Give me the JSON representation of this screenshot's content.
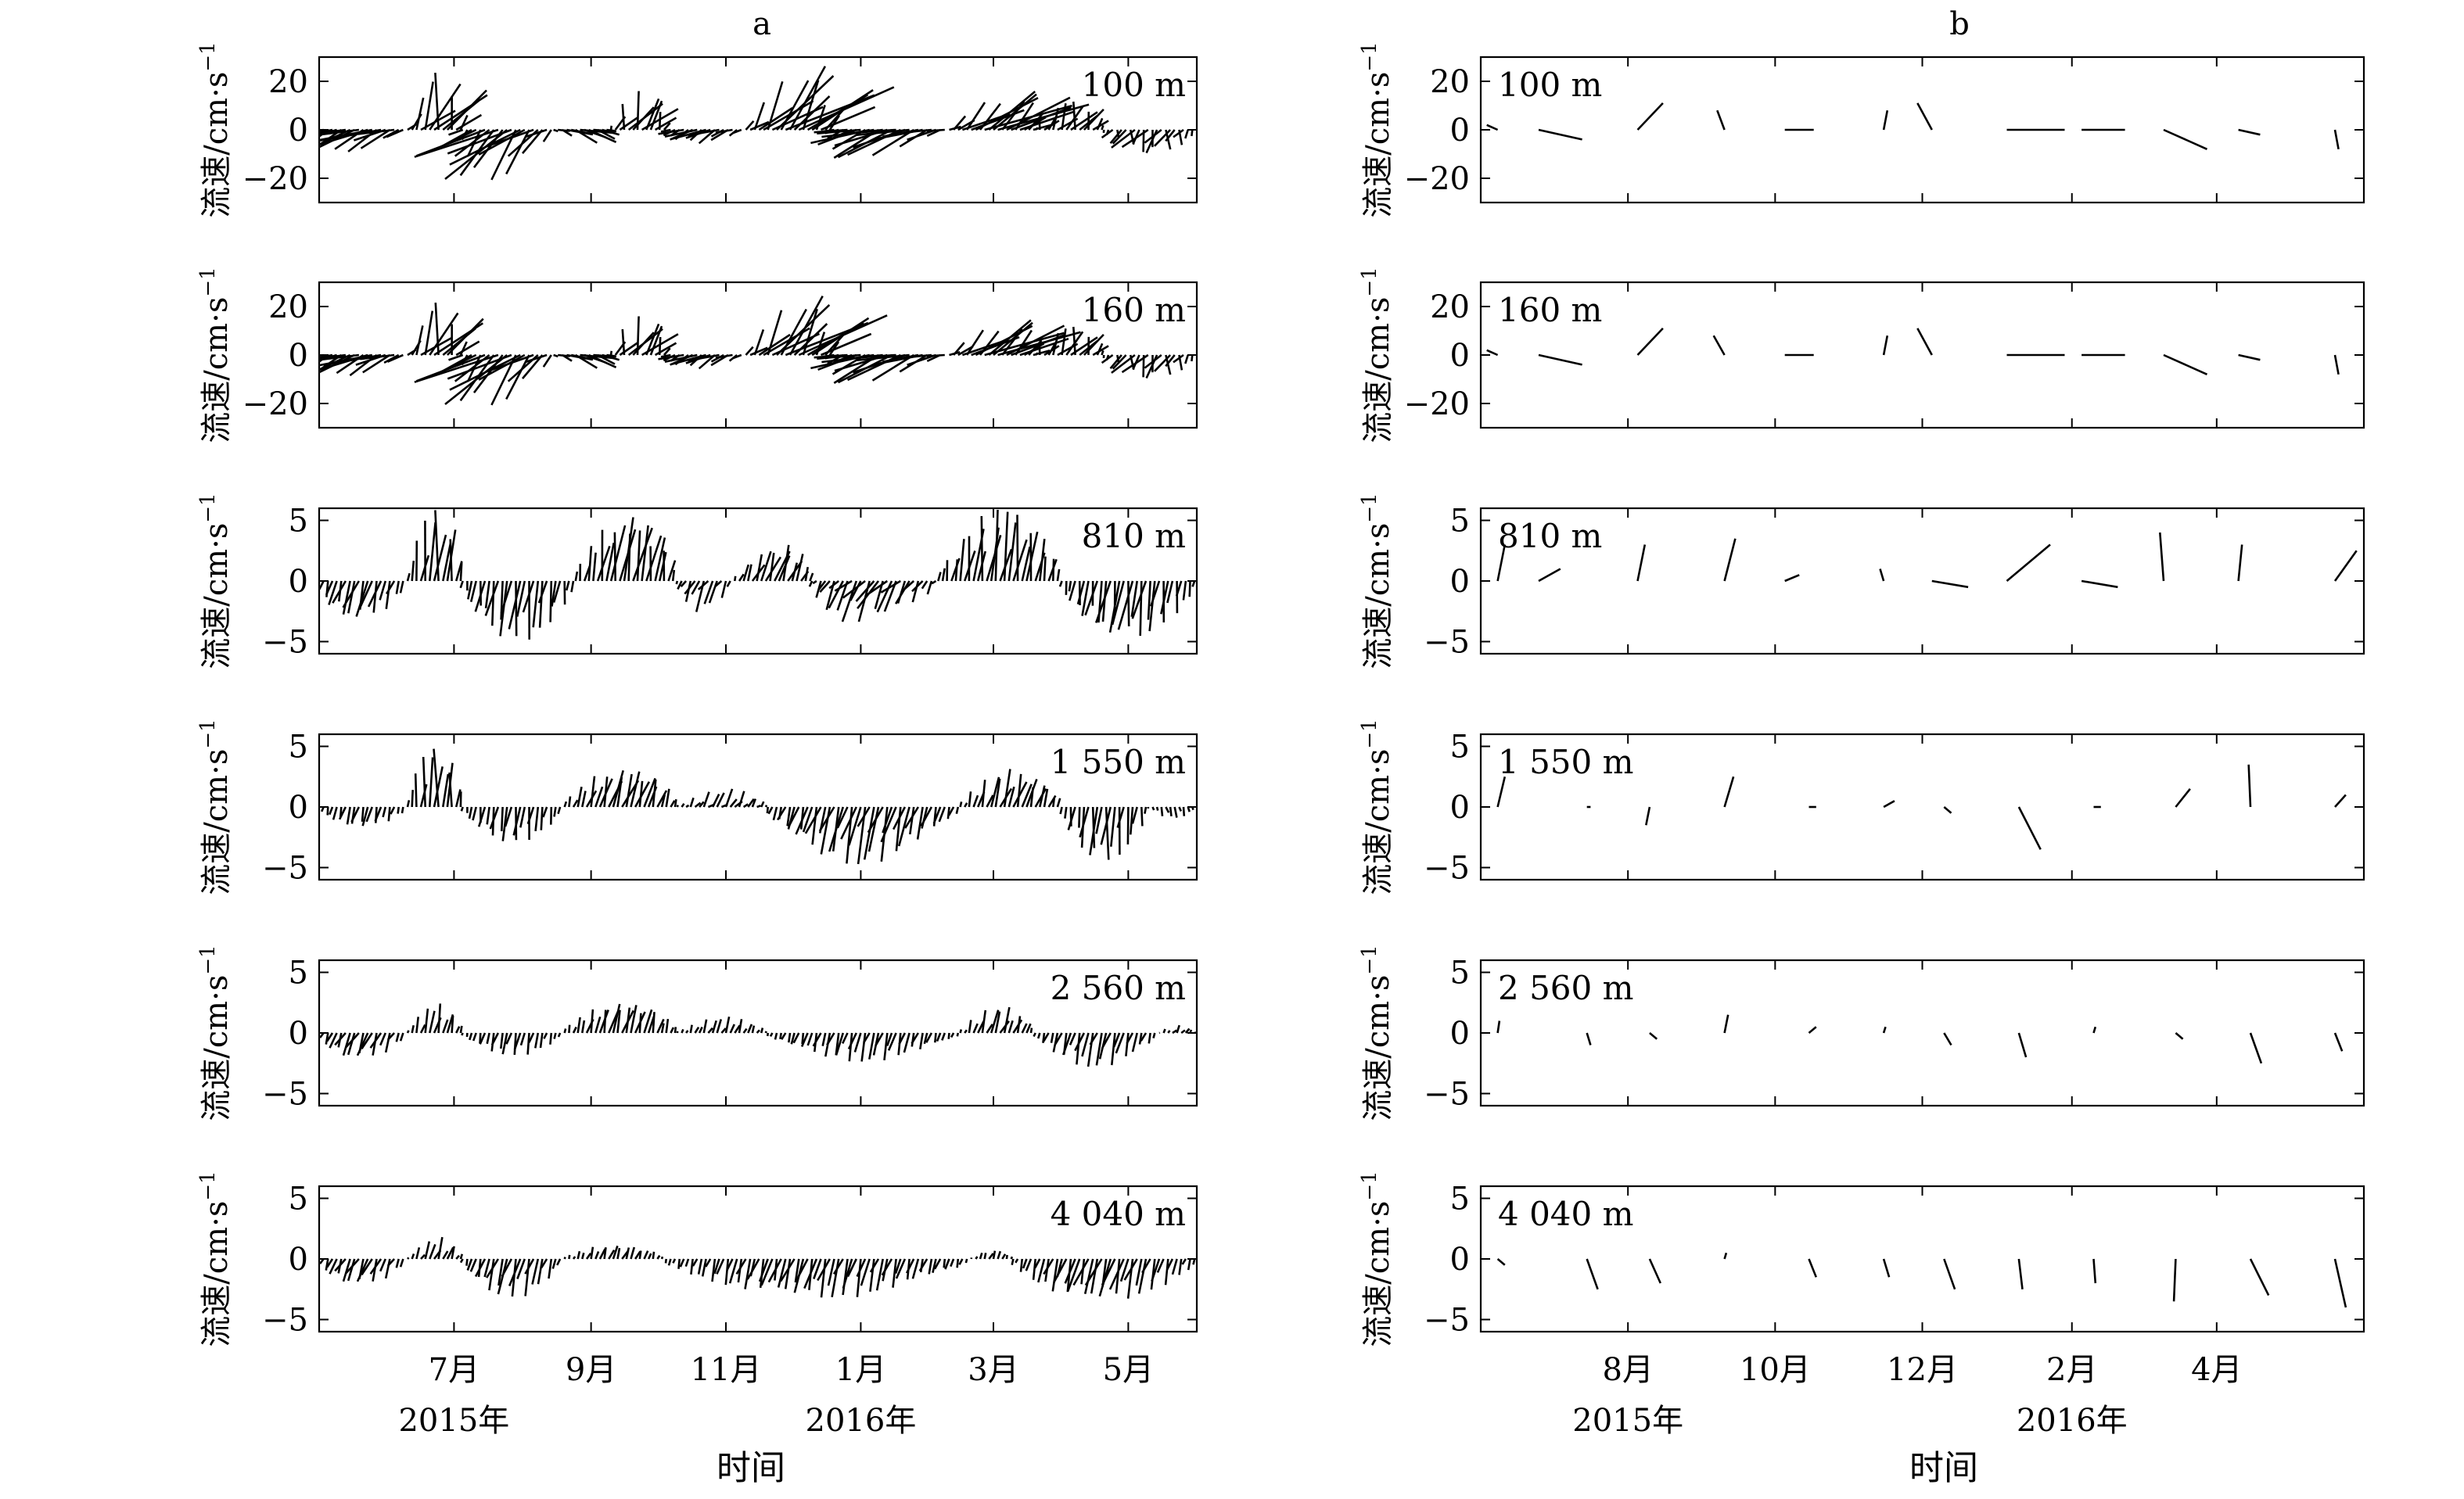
{
  "figure": {
    "panel_letters": [
      "a",
      "b"
    ],
    "xlabel": "时间",
    "ylabel": "流速/cm·s",
    "ylabel_sup": "−1",
    "line_color": "#000000",
    "background": "#ffffff"
  },
  "chart_data": [
    {
      "type": "stick",
      "panel": "a",
      "time_range": [
        "2015-05-01",
        "2016-06-01"
      ],
      "sample_interval_days": 2,
      "xtick_labels": [
        "7月",
        "9月",
        "11月",
        "1月",
        "3月",
        "5月"
      ],
      "xtick_dates": [
        "2015-07-01",
        "2015-09-01",
        "2015-11-01",
        "2016-01-01",
        "2016-03-01",
        "2016-05-01"
      ],
      "year_labels": [
        "2015年",
        "2016年"
      ],
      "year_label_dates": [
        "2015-07-01",
        "2016-01-01"
      ],
      "subplots": [
        {
          "depth_label": "100 m",
          "ylim": [
            -30,
            30
          ],
          "yticks": [
            -20,
            0,
            20
          ],
          "segments": [
            {
              "start": "2015-05-01",
              "end": "2015-06-10",
              "dir": 235,
              "amp": 16
            },
            {
              "start": "2015-06-10",
              "end": "2015-07-05",
              "dir": 20,
              "amp": 24
            },
            {
              "start": "2015-07-05",
              "end": "2015-08-15",
              "dir": 215,
              "amp": 24
            },
            {
              "start": "2015-08-15",
              "end": "2015-09-10",
              "dir": 120,
              "amp": 8
            },
            {
              "start": "2015-09-10",
              "end": "2015-10-05",
              "dir": 20,
              "amp": 16
            },
            {
              "start": "2015-10-05",
              "end": "2015-11-10",
              "dir": 230,
              "amp": 8
            },
            {
              "start": "2015-11-10",
              "end": "2015-12-20",
              "dir": 30,
              "amp": 28
            },
            {
              "start": "2015-12-20",
              "end": "2016-02-10",
              "dir": 240,
              "amp": 16
            },
            {
              "start": "2016-02-10",
              "end": "2016-03-20",
              "dir": 40,
              "amp": 22
            },
            {
              "start": "2016-03-20",
              "end": "2016-04-20",
              "dir": 20,
              "amp": 12
            },
            {
              "start": "2016-04-20",
              "end": "2016-06-01",
              "dir": 195,
              "amp": 10
            }
          ]
        },
        {
          "depth_label": "160 m",
          "ylim": [
            -30,
            30
          ],
          "yticks": [
            -20,
            0,
            20
          ],
          "segments": [
            {
              "start": "2015-05-01",
              "end": "2015-06-10",
              "dir": 235,
              "amp": 15
            },
            {
              "start": "2015-06-10",
              "end": "2015-07-05",
              "dir": 20,
              "amp": 22
            },
            {
              "start": "2015-07-05",
              "end": "2015-08-15",
              "dir": 215,
              "amp": 24
            },
            {
              "start": "2015-08-15",
              "end": "2015-09-10",
              "dir": 120,
              "amp": 8
            },
            {
              "start": "2015-09-10",
              "end": "2015-10-05",
              "dir": 20,
              "amp": 16
            },
            {
              "start": "2015-10-05",
              "end": "2015-11-10",
              "dir": 230,
              "amp": 8
            },
            {
              "start": "2015-11-10",
              "end": "2015-12-20",
              "dir": 30,
              "amp": 26
            },
            {
              "start": "2015-12-20",
              "end": "2016-02-10",
              "dir": 240,
              "amp": 16
            },
            {
              "start": "2016-02-10",
              "end": "2016-03-20",
              "dir": 40,
              "amp": 20
            },
            {
              "start": "2016-03-20",
              "end": "2016-04-20",
              "dir": 20,
              "amp": 12
            },
            {
              "start": "2016-04-20",
              "end": "2016-06-01",
              "dir": 195,
              "amp": 10
            }
          ]
        },
        {
          "depth_label": "810 m",
          "ylim": [
            -6,
            6
          ],
          "yticks": [
            -5,
            0,
            5
          ],
          "segments": [
            {
              "start": "2015-05-01",
              "end": "2015-06-10",
              "dir": 215,
              "amp": 4
            },
            {
              "start": "2015-06-10",
              "end": "2015-07-05",
              "dir": 15,
              "amp": 6
            },
            {
              "start": "2015-07-05",
              "end": "2015-08-25",
              "dir": 200,
              "amp": 5
            },
            {
              "start": "2015-08-25",
              "end": "2015-10-10",
              "dir": 20,
              "amp": 6
            },
            {
              "start": "2015-10-10",
              "end": "2015-11-05",
              "dir": 230,
              "amp": 3
            },
            {
              "start": "2015-11-05",
              "end": "2015-12-10",
              "dir": 40,
              "amp": 4
            },
            {
              "start": "2015-12-10",
              "end": "2016-02-05",
              "dir": 235,
              "amp": 5
            },
            {
              "start": "2016-02-05",
              "end": "2016-04-01",
              "dir": 20,
              "amp": 6
            },
            {
              "start": "2016-04-01",
              "end": "2016-06-01",
              "dir": 200,
              "amp": 5
            }
          ]
        },
        {
          "depth_label": "1 550 m",
          "ylim": [
            -6,
            6
          ],
          "yticks": [
            -5,
            0,
            5
          ],
          "segments": [
            {
              "start": "2015-05-01",
              "end": "2015-06-10",
              "dir": 210,
              "amp": 2
            },
            {
              "start": "2015-06-10",
              "end": "2015-07-05",
              "dir": 10,
              "amp": 5
            },
            {
              "start": "2015-07-05",
              "end": "2015-08-20",
              "dir": 200,
              "amp": 3
            },
            {
              "start": "2015-08-20",
              "end": "2015-10-10",
              "dir": 35,
              "amp": 4
            },
            {
              "start": "2015-10-10",
              "end": "2015-11-20",
              "dir": 60,
              "amp": 2
            },
            {
              "start": "2015-11-20",
              "end": "2016-02-15",
              "dir": 215,
              "amp": 5
            },
            {
              "start": "2016-02-15",
              "end": "2016-04-01",
              "dir": 35,
              "amp": 3.5
            },
            {
              "start": "2016-04-01",
              "end": "2016-05-10",
              "dir": 195,
              "amp": 4.5
            },
            {
              "start": "2016-05-10",
              "end": "2016-06-01",
              "dir": 150,
              "amp": 1
            }
          ]
        },
        {
          "depth_label": "2 560 m",
          "ylim": [
            -6,
            6
          ],
          "yticks": [
            -5,
            0,
            5
          ],
          "segments": [
            {
              "start": "2015-05-01",
              "end": "2015-06-10",
              "dir": 225,
              "amp": 3
            },
            {
              "start": "2015-06-10",
              "end": "2015-07-05",
              "dir": 30,
              "amp": 2.5
            },
            {
              "start": "2015-07-05",
              "end": "2015-08-20",
              "dir": 210,
              "amp": 2
            },
            {
              "start": "2015-08-20",
              "end": "2015-10-10",
              "dir": 30,
              "amp": 3
            },
            {
              "start": "2015-10-10",
              "end": "2015-11-20",
              "dir": 45,
              "amp": 1.5
            },
            {
              "start": "2015-11-20",
              "end": "2016-02-15",
              "dir": 215,
              "amp": 2.5
            },
            {
              "start": "2016-02-15",
              "end": "2016-03-20",
              "dir": 40,
              "amp": 2.5
            },
            {
              "start": "2016-03-20",
              "end": "2016-05-15",
              "dir": 215,
              "amp": 3
            },
            {
              "start": "2016-05-15",
              "end": "2016-06-01",
              "dir": 60,
              "amp": 1
            }
          ]
        },
        {
          "depth_label": "4 040 m",
          "ylim": [
            -6,
            6
          ],
          "yticks": [
            -5,
            0,
            5
          ],
          "segments": [
            {
              "start": "2015-05-01",
              "end": "2015-06-10",
              "dir": 225,
              "amp": 3
            },
            {
              "start": "2015-06-10",
              "end": "2015-07-05",
              "dir": 45,
              "amp": 2
            },
            {
              "start": "2015-07-05",
              "end": "2015-08-20",
              "dir": 215,
              "amp": 3.5
            },
            {
              "start": "2015-08-20",
              "end": "2015-10-05",
              "dir": 40,
              "amp": 1.5
            },
            {
              "start": "2015-10-05",
              "end": "2016-02-20",
              "dir": 215,
              "amp": 3.5
            },
            {
              "start": "2016-02-20",
              "end": "2016-03-10",
              "dir": 40,
              "amp": 1
            },
            {
              "start": "2016-03-10",
              "end": "2016-06-01",
              "dir": 215,
              "amp": 4
            }
          ]
        }
      ]
    },
    {
      "type": "stick",
      "panel": "b",
      "time_range": [
        "2015-06-01",
        "2016-06-01"
      ],
      "xtick_labels": [
        "8月",
        "10月",
        "12月",
        "2月",
        "4月"
      ],
      "xtick_dates": [
        "2015-08-01",
        "2015-10-01",
        "2015-12-01",
        "2016-02-01",
        "2016-04-01"
      ],
      "year_labels": [
        "2015年",
        "2016年"
      ],
      "year_label_dates": [
        "2015-08-01",
        "2016-02-01"
      ],
      "subplots": [
        {
          "depth_label": "100 m",
          "ylim": [
            -30,
            30
          ],
          "yticks": [
            -20,
            0,
            20
          ],
          "x": [
            "2015-06-08",
            "2015-06-25",
            "2015-08-05",
            "2015-09-10",
            "2015-10-05",
            "2015-11-15",
            "2015-12-05",
            "2016-01-05",
            "2016-02-05",
            "2016-03-10",
            "2016-04-10",
            "2016-05-20"
          ],
          "u": [
            -3,
            12,
            7,
            -2,
            8,
            1,
            -4,
            16,
            12,
            12,
            6,
            1
          ],
          "v": [
            2,
            -4,
            11,
            8,
            0,
            8,
            11,
            0,
            0,
            -8,
            -2,
            -8
          ]
        },
        {
          "depth_label": "160 m",
          "ylim": [
            -30,
            30
          ],
          "yticks": [
            -20,
            0,
            20
          ],
          "x": [
            "2015-06-08",
            "2015-06-25",
            "2015-08-05",
            "2015-09-10",
            "2015-10-05",
            "2015-11-15",
            "2015-12-05",
            "2016-01-05",
            "2016-02-05",
            "2016-03-10",
            "2016-04-10",
            "2016-05-20"
          ],
          "u": [
            -3,
            12,
            7,
            -3,
            8,
            1,
            -4,
            16,
            12,
            12,
            6,
            1
          ],
          "v": [
            2,
            -4,
            11,
            8,
            0,
            8,
            11,
            0,
            0,
            -8,
            -2,
            -8
          ]
        },
        {
          "depth_label": "810 m",
          "ylim": [
            -6,
            6
          ],
          "yticks": [
            -5,
            0,
            5
          ],
          "x": [
            "2015-06-08",
            "2015-06-25",
            "2015-08-05",
            "2015-09-10",
            "2015-10-05",
            "2015-11-15",
            "2015-12-05",
            "2016-01-05",
            "2016-02-05",
            "2016-03-10",
            "2016-04-10",
            "2016-05-20"
          ],
          "u": [
            2,
            6,
            2,
            3,
            4,
            -1,
            10,
            12,
            10,
            -1,
            1,
            6
          ],
          "v": [
            3,
            1,
            3,
            3.5,
            0.5,
            1,
            -0.5,
            3,
            -0.5,
            4,
            3,
            2.5
          ]
        },
        {
          "depth_label": "1 550 m",
          "ylim": [
            -6,
            6
          ],
          "yticks": [
            -5,
            0,
            5
          ],
          "x": [
            "2015-06-08",
            "2015-07-15",
            "2015-08-10",
            "2015-09-10",
            "2015-10-15",
            "2015-11-15",
            "2015-12-10",
            "2016-01-10",
            "2016-02-10",
            "2016-03-15",
            "2016-04-15",
            "2016-05-20"
          ],
          "u": [
            2,
            1,
            -1,
            2.5,
            2,
            3,
            2,
            6,
            2,
            4,
            -0.5,
            3
          ],
          "v": [
            2.5,
            0,
            -1.5,
            2.5,
            0,
            0.5,
            -0.5,
            -3.5,
            0,
            1.5,
            3.5,
            1
          ]
        },
        {
          "depth_label": "2 560 m",
          "ylim": [
            -6,
            6
          ],
          "yticks": [
            -5,
            0,
            5
          ],
          "x": [
            "2015-06-08",
            "2015-07-15",
            "2015-08-10",
            "2015-09-10",
            "2015-10-15",
            "2015-11-15",
            "2015-12-10",
            "2016-01-10",
            "2016-02-10",
            "2016-03-15",
            "2016-04-15",
            "2016-05-20"
          ],
          "u": [
            0.5,
            1,
            2,
            1,
            2,
            0.5,
            2,
            2,
            0.5,
            2,
            3,
            2
          ],
          "v": [
            1,
            -1,
            -0.5,
            1.5,
            0.5,
            0.5,
            -1,
            -2,
            0.5,
            -0.5,
            -2.5,
            -1.5
          ]
        },
        {
          "depth_label": "4 040 m",
          "ylim": [
            -6,
            6
          ],
          "yticks": [
            -5,
            0,
            5
          ],
          "x": [
            "2015-06-08",
            "2015-07-15",
            "2015-08-10",
            "2015-09-10",
            "2015-10-15",
            "2015-11-15",
            "2015-12-10",
            "2016-01-10",
            "2016-02-10",
            "2016-03-15",
            "2016-04-15",
            "2016-05-20"
          ],
          "u": [
            2,
            3,
            3,
            0.5,
            2,
            1.5,
            3,
            1,
            0.5,
            -0.5,
            5,
            3
          ],
          "v": [
            -0.5,
            -2.5,
            -2,
            0.5,
            -1.5,
            -1.5,
            -2.5,
            -2.5,
            -2,
            -3.5,
            -3,
            -4
          ]
        }
      ]
    }
  ]
}
